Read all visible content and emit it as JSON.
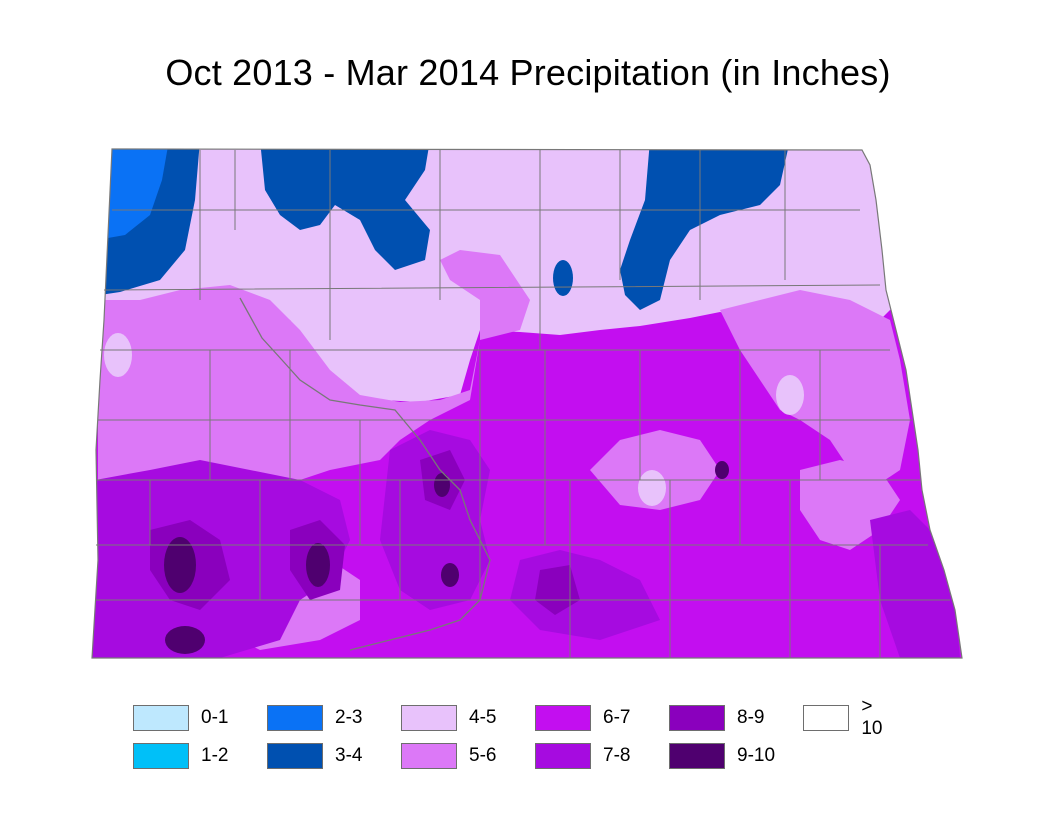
{
  "title": "Oct 2013 - Mar 2014 Precipitation (in Inches)",
  "colors": {
    "c45": "#e8c2fb",
    "c56": "#dc78f7",
    "c67": "#c30ef0",
    "c78": "#a60be0",
    "c89": "#8a00bd",
    "c910": "#4f006f",
    "c23": "#0a72f5",
    "c34": "#0050b0",
    "border": "#787878"
  },
  "legend": [
    {
      "label": "0-1",
      "color": "#bee8fe"
    },
    {
      "label": "1-2",
      "color": "#00c0f8"
    },
    {
      "label": "2-3",
      "color": "#0a72f5"
    },
    {
      "label": "3-4",
      "color": "#0050b0"
    },
    {
      "label": "4-5",
      "color": "#e8c2fb"
    },
    {
      "label": "5-6",
      "color": "#dc78f7"
    },
    {
      "label": "6-7",
      "color": "#c30ef0"
    },
    {
      "label": "7-8",
      "color": "#a60be0"
    },
    {
      "label": "8-9",
      "color": "#8a00bd"
    },
    {
      "label": "9-10",
      "color": "#4f006f"
    },
    {
      "label": "> 10",
      "color": "#ffffff"
    }
  ]
}
